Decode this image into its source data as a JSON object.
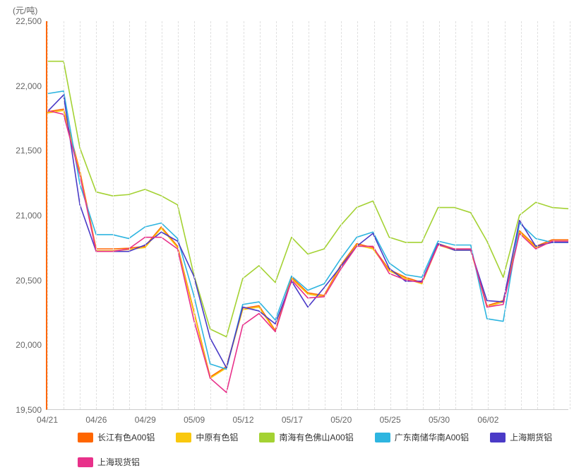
{
  "chart": {
    "type": "line",
    "y_unit_label": "(元/吨)",
    "background_color": "#ffffff",
    "grid_color": "#e0e0e0",
    "axis_color": "#cccccc",
    "left_axis_color": "#ff6600",
    "text_color": "#666666",
    "label_fontsize": 12,
    "ylim": [
      19500,
      22500
    ],
    "ytick_step": 500,
    "yticks": [
      "19,500",
      "20,000",
      "20,500",
      "21,000",
      "21,500",
      "22,000",
      "22,500"
    ],
    "ytick_values": [
      19500,
      20000,
      20500,
      21000,
      21500,
      22000,
      22500
    ],
    "x_count": 33,
    "xtick_labels": [
      "04/21",
      "04/26",
      "04/29",
      "05/09",
      "05/12",
      "05/17",
      "05/20",
      "05/25",
      "05/30",
      "06/02"
    ],
    "xtick_positions": [
      0,
      3,
      6,
      9,
      12,
      15,
      18,
      21,
      24,
      27
    ],
    "vgrid_step": 3,
    "line_width": 1.6,
    "series": [
      {
        "name": "长江有色A00铝",
        "color": "#ff6600",
        "values": [
          21800,
          21820,
          21340,
          20740,
          20740,
          20745,
          20760,
          20910,
          20760,
          20260,
          19750,
          19830,
          20280,
          20300,
          20110,
          20520,
          20400,
          20380,
          20610,
          20780,
          20750,
          20580,
          20520,
          20480,
          20780,
          20740,
          20740,
          20300,
          20340,
          20880,
          20760,
          20810,
          20810
        ]
      },
      {
        "name": "中原有色铝",
        "color": "#f9c80e",
        "values": [
          21790,
          21810,
          21325,
          20725,
          20725,
          20735,
          20750,
          20900,
          20750,
          20250,
          19740,
          19820,
          20270,
          20290,
          20100,
          20510,
          20390,
          20370,
          20600,
          20770,
          20740,
          20570,
          20510,
          20470,
          20770,
          20730,
          20730,
          20290,
          20330,
          20870,
          20750,
          20800,
          20800
        ]
      },
      {
        "name": "南海有色佛山A00铝",
        "color": "#a4d233",
        "values": [
          22190,
          22190,
          21520,
          21180,
          21150,
          21160,
          21200,
          21150,
          21080,
          20540,
          20120,
          20060,
          20510,
          20610,
          20480,
          20830,
          20700,
          20740,
          20920,
          21060,
          21110,
          20830,
          20790,
          20790,
          21060,
          21060,
          21020,
          20800,
          20520,
          21000,
          21100,
          21060,
          21050
        ]
      },
      {
        "name": "广东南储华南A00铝",
        "color": "#2eb5e0",
        "values": [
          21940,
          21960,
          21240,
          20850,
          20850,
          20820,
          20910,
          20940,
          20820,
          20380,
          19850,
          19810,
          20310,
          20330,
          20190,
          20530,
          20420,
          20470,
          20660,
          20830,
          20870,
          20630,
          20540,
          20520,
          20800,
          20770,
          20770,
          20200,
          20180,
          20940,
          20820,
          20790,
          20790
        ]
      },
      {
        "name": "上海期货铝",
        "color": "#4a3ac7",
        "values": [
          21800,
          21930,
          21080,
          20720,
          20720,
          20720,
          20770,
          20870,
          20800,
          20530,
          20050,
          19820,
          20290,
          20260,
          20160,
          20490,
          20290,
          20440,
          20600,
          20760,
          20860,
          20590,
          20490,
          20490,
          20780,
          20730,
          20730,
          20340,
          20330,
          20960,
          20760,
          20790,
          20790
        ]
      },
      {
        "name": "上海现货铝",
        "color": "#e8318a",
        "values": [
          21810,
          21780,
          21310,
          20720,
          20720,
          20740,
          20830,
          20830,
          20740,
          20190,
          19740,
          19630,
          20150,
          20240,
          20100,
          20500,
          20360,
          20370,
          20580,
          20760,
          20760,
          20550,
          20500,
          20480,
          20770,
          20740,
          20740,
          20290,
          20310,
          20860,
          20740,
          20800,
          20800
        ]
      }
    ]
  }
}
